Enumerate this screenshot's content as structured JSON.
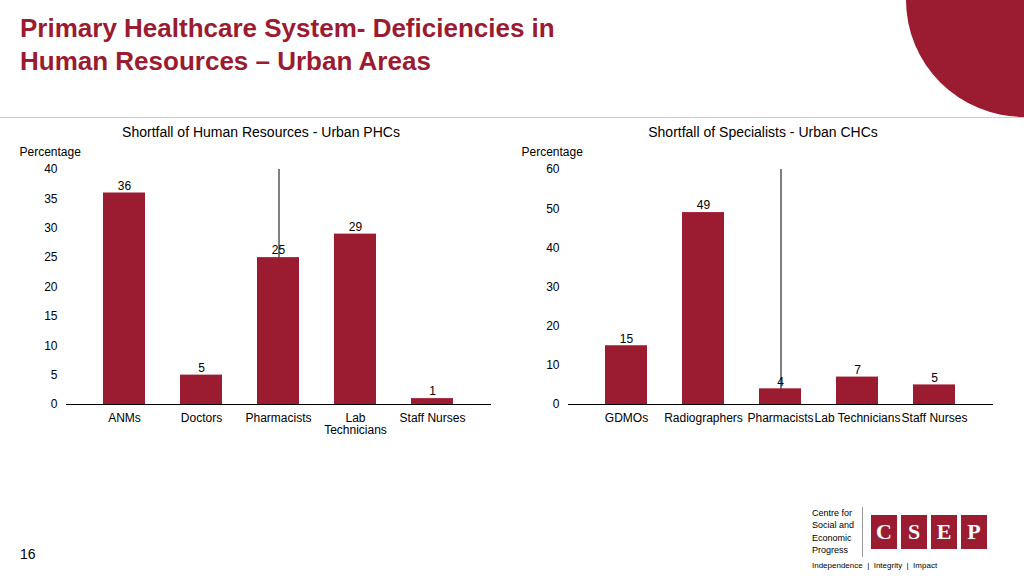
{
  "title": "Primary Healthcare System- Deficiencies in\nHuman Resources – Urban Areas",
  "annotations": [
    "16",
    "Centre for\nSocial and\nEconomic\nProgress",
    "CSEP",
    "Independence  |  Integrity  |  Impact"
  ],
  "chart_data": [
    {
      "type": "bar",
      "title": "Shortfall of Human Resources - Urban PHCs",
      "categories": [
        "ANMs",
        "Doctors",
        "Pharmacists",
        "Lab\nTechnicians",
        "Staff Nurses"
      ],
      "values": [
        36,
        5,
        25,
        29,
        1
      ],
      "color": "#9B1B30",
      "ylabel": "Percentage",
      "ylim": [
        0,
        40
      ],
      "yticks": [
        0,
        5,
        10,
        15,
        20,
        25,
        30,
        35,
        40
      ],
      "grid": false,
      "data_labels": true
    },
    {
      "type": "bar",
      "title": "Shortfall of Specialists - Urban CHCs",
      "categories": [
        "GDMOs",
        "Radiographers",
        "Pharmacists",
        "Lab Technicians",
        "Staff Nurses"
      ],
      "values": [
        15,
        49,
        4,
        7,
        5
      ],
      "color": "#9B1B30",
      "ylabel": "Percentage",
      "ylim": [
        0,
        60
      ],
      "yticks": [
        0,
        10,
        20,
        30,
        40,
        50,
        60
      ],
      "grid": false,
      "data_labels": true
    }
  ]
}
